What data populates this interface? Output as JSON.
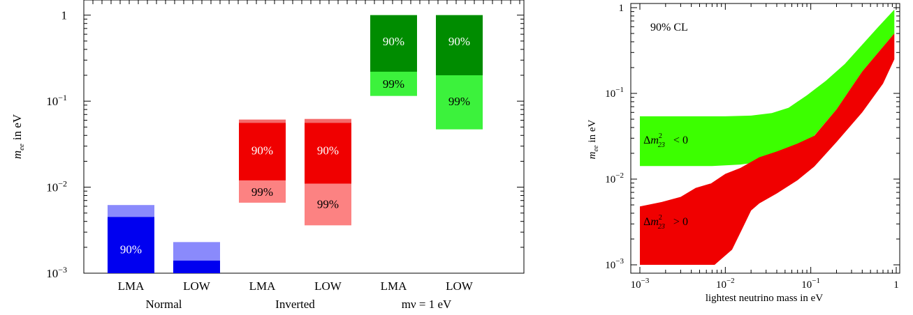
{
  "chart_data": [
    {
      "type": "bar",
      "subtype": "floating-range",
      "yscale": "log",
      "ylim": [
        0.001,
        1.5
      ],
      "ylabel": {
        "italic": "m",
        "sub": "ee",
        "rest": "in eV"
      },
      "yticks": [
        {
          "base": "10",
          "exp": "−3",
          "v": 0.001
        },
        {
          "base": "10",
          "exp": "−2",
          "v": 0.01
        },
        {
          "base": "10",
          "exp": "−1",
          "v": 0.1
        },
        {
          "base": "1",
          "exp": "",
          "v": 1
        }
      ],
      "categories": [
        "LMA",
        "LOW",
        "LMA",
        "LOW",
        "LMA",
        "LOW"
      ],
      "groups": [
        {
          "label": "Normal",
          "span": [
            0,
            1
          ]
        },
        {
          "label": "Inverted",
          "span": [
            2,
            3
          ]
        },
        {
          "label": "mν = 1 eV",
          "span": [
            4,
            5
          ]
        }
      ],
      "series": [
        {
          "name": "99%",
          "ranges": [
            [
              0.001,
              0.0062
            ],
            [
              0.001,
              0.0023
            ],
            [
              0.0066,
              0.061
            ],
            [
              0.0036,
              0.062
            ],
            [
              0.115,
              1.0
            ],
            [
              0.047,
              1.0
            ]
          ]
        },
        {
          "name": "90%",
          "ranges": [
            [
              0.001,
              0.0045
            ],
            [
              0.001,
              0.0014
            ],
            [
              0.012,
              0.056
            ],
            [
              0.011,
              0.056
            ],
            [
              0.22,
              1.0
            ],
            [
              0.2,
              1.0
            ]
          ]
        }
      ],
      "colors": {
        "blue_outer": "#8a8afc",
        "blue_inner": "#0000f0",
        "red_outer": "#fc8282",
        "red_inner": "#f00000",
        "green_outer": "#3cf23c",
        "green_inner": "#008c00",
        "red_top_strip": "#f46a6a"
      },
      "bar_labels": [
        {
          "bar": 0,
          "text": "90%",
          "y": 0.0019,
          "color": "#ffffff"
        },
        {
          "bar": 2,
          "text": "90%",
          "y": 0.027,
          "color": "#ffffff"
        },
        {
          "bar": 2,
          "text": "99%",
          "y": 0.0089,
          "color": "#000000"
        },
        {
          "bar": 3,
          "text": "90%",
          "y": 0.027,
          "color": "#ffffff"
        },
        {
          "bar": 3,
          "text": "99%",
          "y": 0.0064,
          "color": "#000000"
        },
        {
          "bar": 4,
          "text": "90%",
          "y": 0.5,
          "color": "#ffffff"
        },
        {
          "bar": 4,
          "text": "99%",
          "y": 0.16,
          "color": "#000000"
        },
        {
          "bar": 5,
          "text": "90%",
          "y": 0.5,
          "color": "#ffffff"
        },
        {
          "bar": 5,
          "text": "99%",
          "y": 0.1,
          "color": "#000000"
        }
      ]
    },
    {
      "type": "area",
      "xscale": "log",
      "yscale": "log",
      "xlim": [
        0.001,
        1
      ],
      "ylim": [
        0.001,
        1
      ],
      "xlabel": "lightest neutrino mass in eV",
      "ylabel": {
        "italic": "m",
        "sub": "ee",
        "rest": "in eV"
      },
      "xticks": [
        {
          "base": "10",
          "exp": "−3",
          "v": 0.001
        },
        {
          "base": "10",
          "exp": "−2",
          "v": 0.01
        },
        {
          "base": "10",
          "exp": "−1",
          "v": 0.1
        },
        {
          "base": "1",
          "exp": "",
          "v": 1
        }
      ],
      "yticks": [
        {
          "base": "10",
          "exp": "−3",
          "v": 0.001
        },
        {
          "base": "10",
          "exp": "−2",
          "v": 0.01
        },
        {
          "base": "10",
          "exp": "−1",
          "v": 0.1
        },
        {
          "base": "1",
          "exp": "",
          "v": 1
        }
      ],
      "annotation": "90% CL",
      "series": [
        {
          "name": "Δm²₂₃ > 0",
          "color": "#f00000",
          "upper": [
            [
              0.001,
              0.0048
            ],
            [
              0.0018,
              0.0054
            ],
            [
              0.003,
              0.0062
            ],
            [
              0.0045,
              0.0079
            ],
            [
              0.0068,
              0.0089
            ],
            [
              0.01,
              0.0115
            ],
            [
              0.015,
              0.0135
            ],
            [
              0.025,
              0.018
            ],
            [
              0.04,
              0.021
            ],
            [
              0.07,
              0.026
            ],
            [
              0.11,
              0.032
            ],
            [
              0.2,
              0.065
            ],
            [
              0.4,
              0.18
            ],
            [
              0.7,
              0.35
            ],
            [
              0.95,
              0.5
            ]
          ],
          "lower": [
            [
              0.001,
              0.001
            ],
            [
              0.0075,
              0.001
            ],
            [
              0.012,
              0.0015
            ],
            [
              0.016,
              0.0027
            ],
            [
              0.02,
              0.0043
            ],
            [
              0.025,
              0.0052
            ],
            [
              0.04,
              0.0068
            ],
            [
              0.07,
              0.0097
            ],
            [
              0.11,
              0.014
            ],
            [
              0.2,
              0.027
            ],
            [
              0.4,
              0.06
            ],
            [
              0.7,
              0.13
            ],
            [
              0.95,
              0.25
            ]
          ]
        },
        {
          "name": "Δm²₂₃ < 0",
          "color": "#3cff00",
          "upper": [
            [
              0.001,
              0.054
            ],
            [
              0.01,
              0.054
            ],
            [
              0.02,
              0.055
            ],
            [
              0.035,
              0.059
            ],
            [
              0.055,
              0.068
            ],
            [
              0.09,
              0.095
            ],
            [
              0.15,
              0.14
            ],
            [
              0.25,
              0.22
            ],
            [
              0.4,
              0.37
            ],
            [
              0.6,
              0.58
            ],
            [
              0.95,
              0.95
            ]
          ],
          "lower": [
            [
              0.001,
              0.0142
            ],
            [
              0.007,
              0.0142
            ],
            [
              0.015,
              0.0148
            ],
            [
              0.025,
              0.0158
            ],
            [
              0.04,
              0.0188
            ],
            [
              0.06,
              0.0228
            ],
            [
              0.1,
              0.0288
            ],
            [
              0.2,
              0.065
            ],
            [
              0.4,
              0.18
            ],
            [
              0.7,
              0.35
            ],
            [
              0.95,
              0.5
            ]
          ]
        }
      ],
      "series_labels": [
        {
          "series": 1,
          "delta": "Δ",
          "m": "m",
          "sup": "2",
          "sub": "23",
          "rel": "<  0",
          "x": 0.0011,
          "y": 0.026
        },
        {
          "series": 0,
          "delta": "Δ",
          "m": "m",
          "sup": "2",
          "sub": "23",
          "rel": ">  0",
          "x": 0.0011,
          "y": 0.0029
        }
      ]
    }
  ]
}
